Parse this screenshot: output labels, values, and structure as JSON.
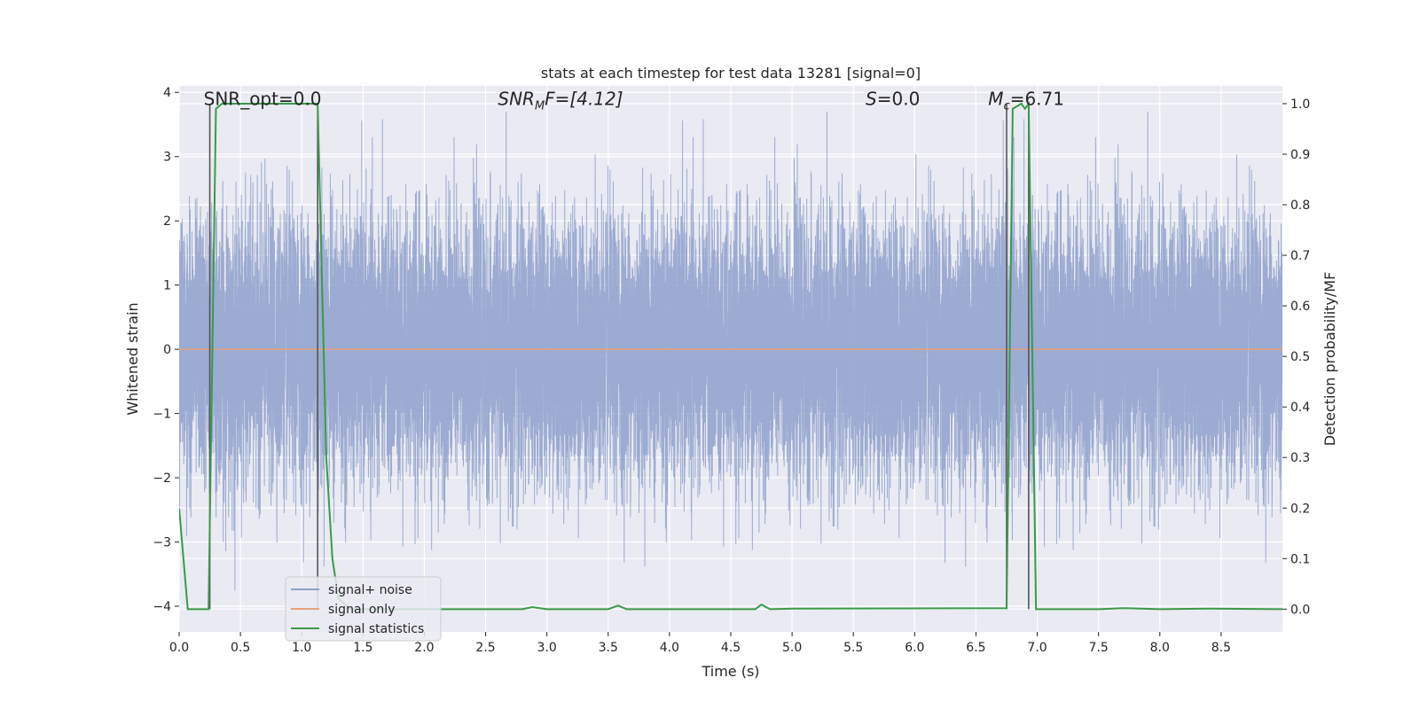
{
  "chart_data": {
    "type": "line",
    "title": "stats at each timestep for test data 13281 [signal=0]",
    "xlabel": "Time (s)",
    "ylabel_left": "Whitened strain",
    "ylabel_right": "Detection probability/MF",
    "xlim": [
      0.0,
      9.0
    ],
    "ylim_left": [
      -4.4,
      4.1
    ],
    "ylim_right": [
      -0.045,
      1.035
    ],
    "x_ticks": [
      0.0,
      0.5,
      1.0,
      1.5,
      2.0,
      2.5,
      3.0,
      3.5,
      4.0,
      4.5,
      5.0,
      5.5,
      6.0,
      6.5,
      7.0,
      7.5,
      8.0,
      8.5
    ],
    "x_tick_labels": [
      "0.0",
      "0.5",
      "1.0",
      "1.5",
      "2.0",
      "2.5",
      "3.0",
      "3.5",
      "4.0",
      "4.5",
      "5.0",
      "5.5",
      "6.0",
      "6.5",
      "7.0",
      "7.5",
      "8.0",
      "8.5"
    ],
    "y_left_ticks": [
      4,
      3,
      2,
      1,
      0,
      -1,
      -2,
      -3,
      -4
    ],
    "y_left_tick_labels": [
      "4",
      "3",
      "2",
      "1",
      "0",
      "−1",
      "−2",
      "−3",
      "−4"
    ],
    "y_right_ticks": [
      1.0,
      0.9,
      0.8,
      0.7,
      0.6,
      0.5,
      0.4,
      0.3,
      0.2,
      0.1,
      0.0
    ],
    "y_right_tick_labels": [
      "1.0",
      "0.9",
      "0.8",
      "0.7",
      "0.6",
      "0.5",
      "0.4",
      "0.3",
      "0.2",
      "0.1",
      "0.0"
    ],
    "annotations": {
      "snr_opt": "SNR_opt=0.0",
      "snr_mf_prefix": "SNR",
      "snr_mf_sub": "M",
      "snr_mf_suffix": "F=[4.12]",
      "s_symbol": "S",
      "s_value": "=0.0",
      "mc_symbol": "M",
      "mc_sub": "c",
      "mc_value": "=6.71"
    },
    "detection_markers_s": [
      0.25,
      1.13,
      6.75,
      6.93
    ],
    "series": [
      {
        "name": "signal+ noise",
        "axis": "left",
        "color": "#8da0cb",
        "description": "whitened noisy strain, approx. Gaussian, range about -4 to 3.7",
        "noise_sigma": 1.0,
        "n_samples": 18000
      },
      {
        "name": "signal only",
        "axis": "left",
        "color": "#e8a07a",
        "x": [
          0.0,
          9.0
        ],
        "y": [
          0.0,
          0.0
        ]
      },
      {
        "name": "signal statistics",
        "axis": "right",
        "color": "#3a9a4a",
        "x": [
          0.0,
          0.07,
          0.24,
          0.3,
          0.35,
          1.1,
          1.13,
          1.2,
          1.25,
          1.3,
          1.4,
          2.8,
          2.88,
          3.0,
          3.5,
          3.58,
          3.65,
          4.5,
          4.7,
          4.75,
          4.82,
          5.0,
          6.75,
          6.8,
          6.87,
          6.9,
          6.93,
          6.99,
          7.5,
          7.7,
          8.0,
          8.4,
          9.0
        ],
        "y": [
          0.2,
          0.0,
          0.0,
          0.99,
          1.0,
          1.0,
          1.0,
          0.3,
          0.1,
          0.02,
          0.0,
          0.0,
          0.004,
          0.0,
          0.0,
          0.007,
          0.0,
          0.0,
          0.0,
          0.009,
          0.0,
          0.001,
          0.002,
          0.99,
          1.0,
          0.99,
          1.0,
          0.0,
          0.0,
          0.002,
          0.0,
          0.001,
          0.0
        ]
      }
    ],
    "legend_position": "lower-left"
  },
  "colors": {
    "background": "#eaeaf2",
    "grid": "#ffffff",
    "marker_line": "#555555",
    "legend_bg": "#eaeaf2"
  }
}
